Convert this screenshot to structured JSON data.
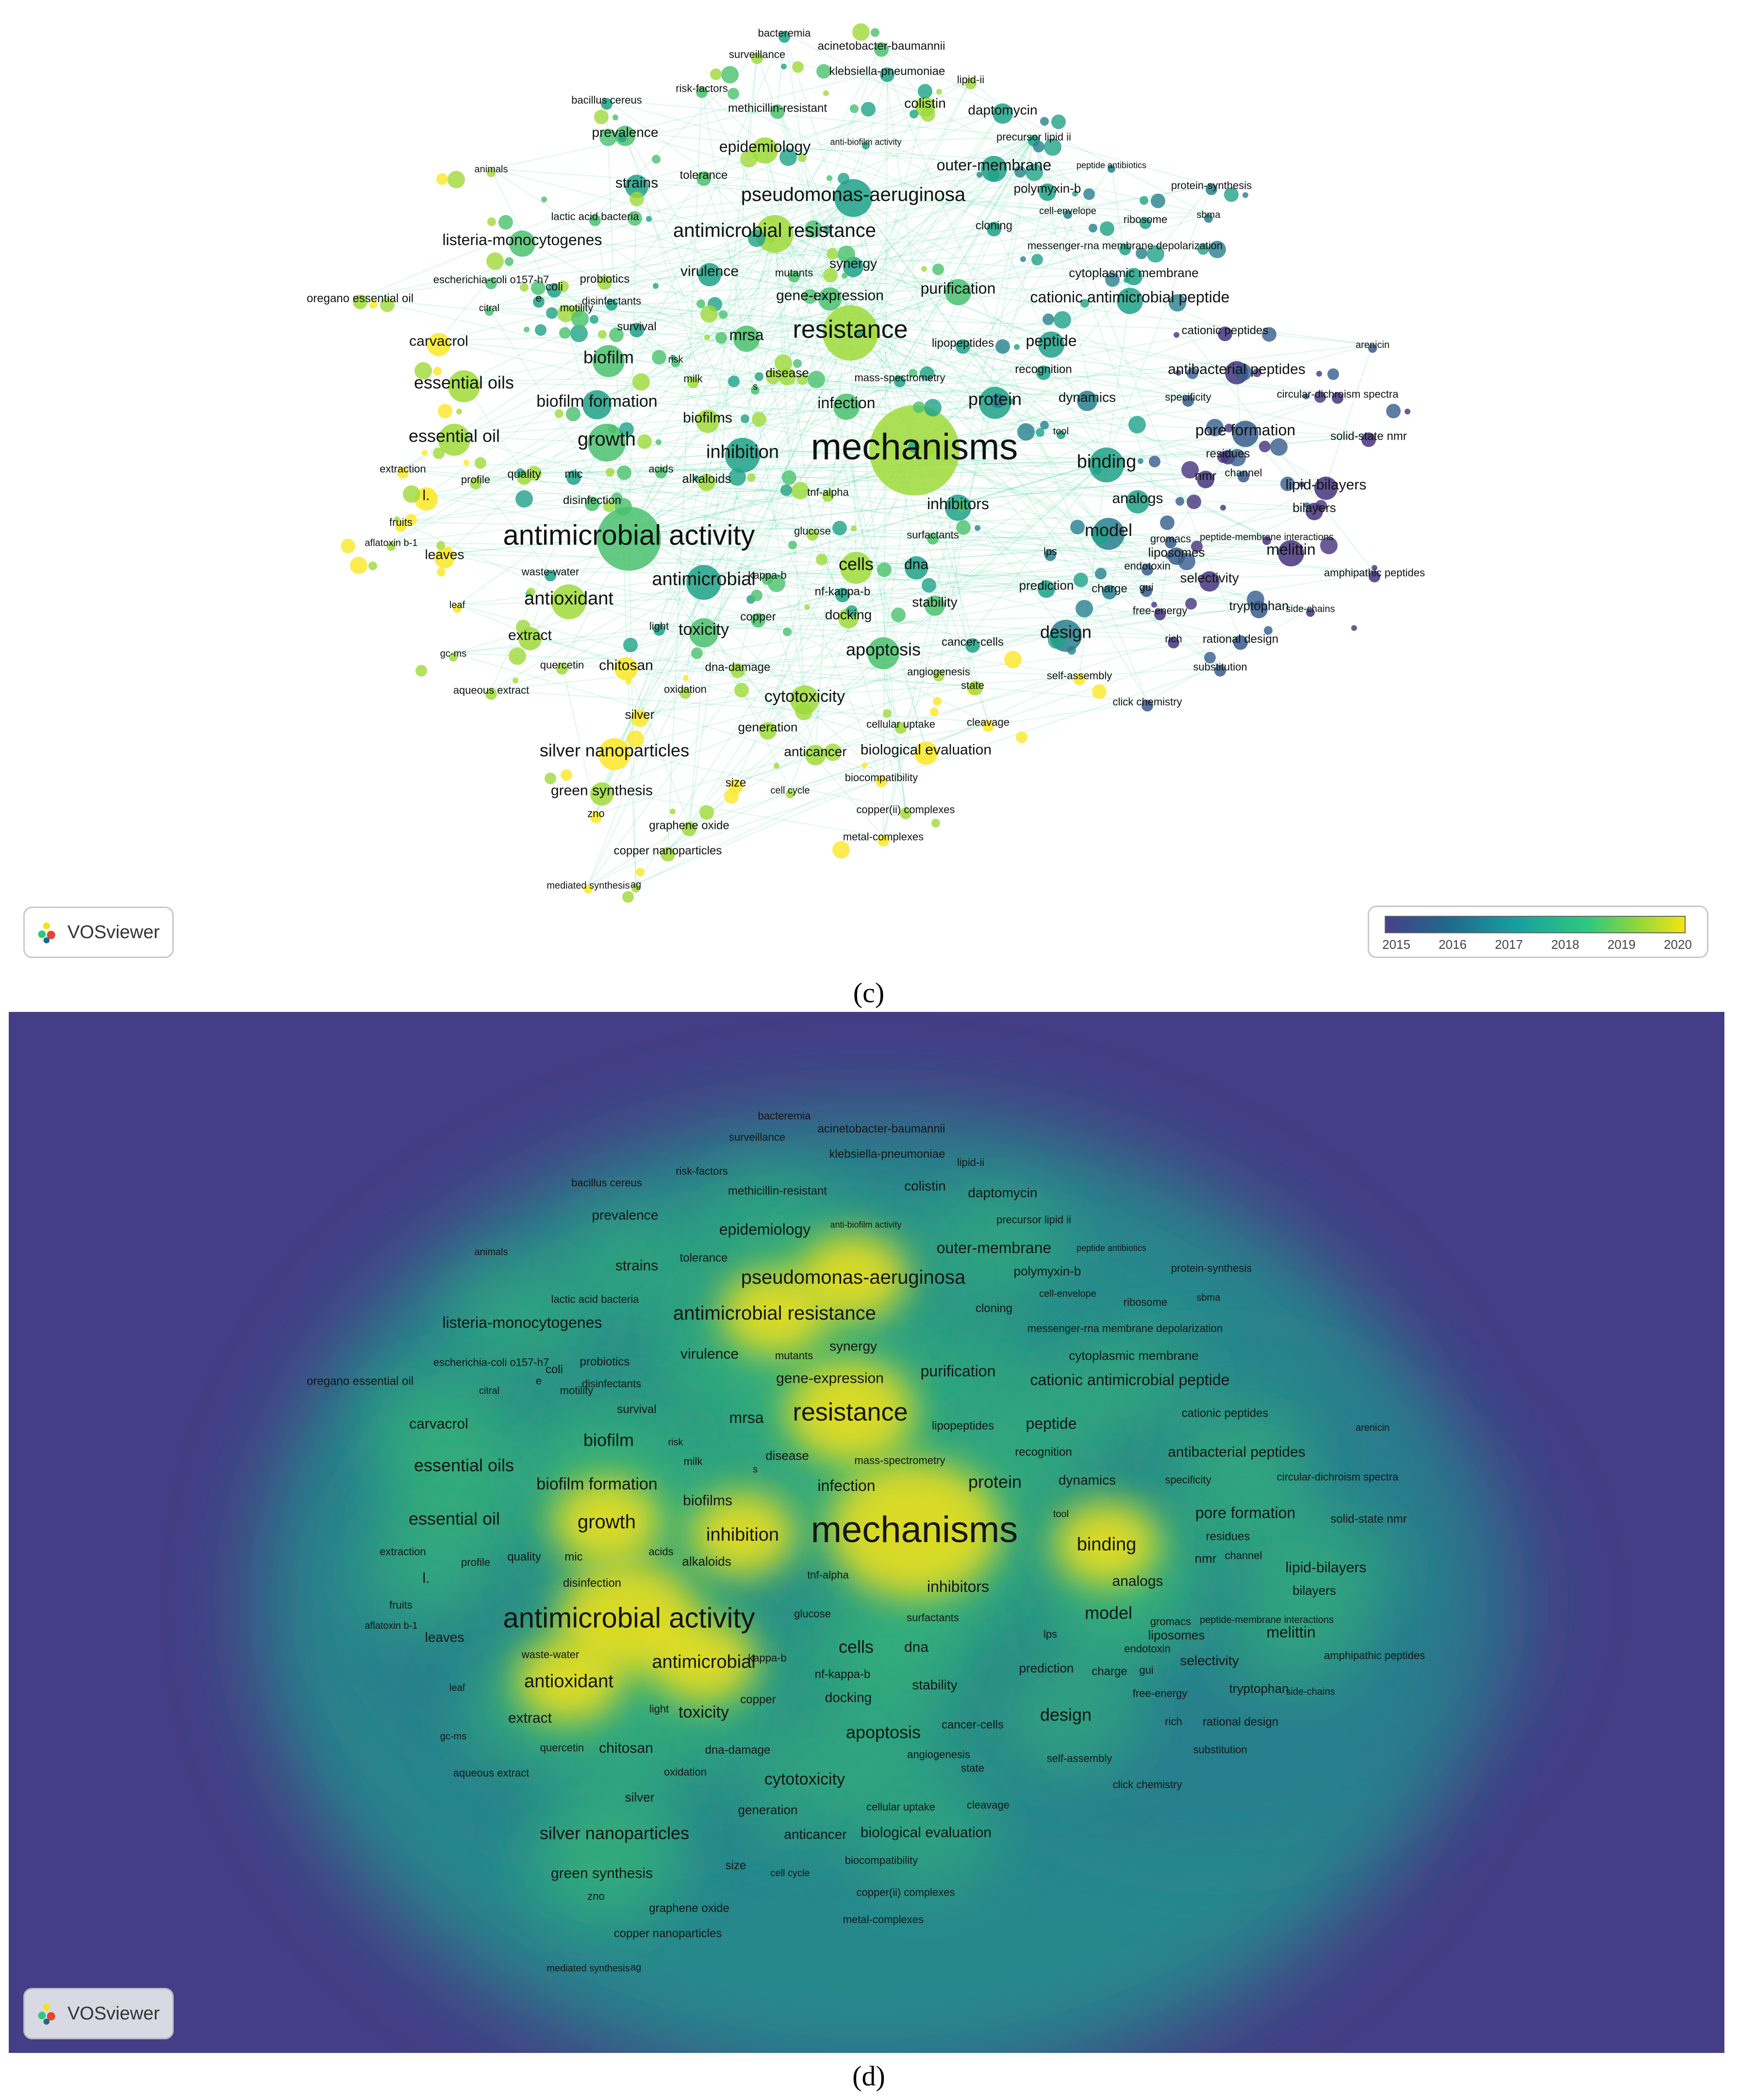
{
  "panels": {
    "c_label": "(c)",
    "d_label": "(d)"
  },
  "brand": "VOSviewer",
  "legend": {
    "ticks": [
      "2015",
      "2016",
      "2017",
      "2018",
      "2019",
      "2020"
    ],
    "gradient": [
      "#45418a",
      "#1e6b8d",
      "#17a0a0",
      "#2ec97e",
      "#8fd63c",
      "#f4e411"
    ]
  },
  "colors": {
    "density_background": "#433e85",
    "density_high": "#f6e31b",
    "edge": "#3bd494"
  },
  "terms": [
    {
      "t": "bacteremia",
      "s": 22
    },
    {
      "t": "acinetobacter-baumannii",
      "s": 24
    },
    {
      "t": "surveillance",
      "s": 22
    },
    {
      "t": "klebsiella-pneumoniae",
      "s": 24
    },
    {
      "t": "risk-factors",
      "s": 22
    },
    {
      "t": "lipid-ii",
      "s": 22
    },
    {
      "t": "bacillus cereus",
      "s": 22
    },
    {
      "t": "methicillin-resistant",
      "s": 24
    },
    {
      "t": "colistin",
      "s": 28
    },
    {
      "t": "daptomycin",
      "s": 28
    },
    {
      "t": "prevalence",
      "s": 28
    },
    {
      "t": "epidemiology",
      "s": 32
    },
    {
      "t": "anti-biofilm activity",
      "s": 18
    },
    {
      "t": "precursor lipid ii",
      "s": 22
    },
    {
      "t": "animals",
      "s": 20
    },
    {
      "t": "strains",
      "s": 30
    },
    {
      "t": "tolerance",
      "s": 24
    },
    {
      "t": "outer-membrane",
      "s": 32
    },
    {
      "t": "peptide antibiotics",
      "s": 18
    },
    {
      "t": "polymyxin-b",
      "s": 26
    },
    {
      "t": "protein-synthesis",
      "s": 22
    },
    {
      "t": "pseudomonas-aeruginosa",
      "s": 40
    },
    {
      "t": "cell-envelope",
      "s": 20
    },
    {
      "t": "ribosome",
      "s": 22
    },
    {
      "t": "sbma",
      "s": 20
    },
    {
      "t": "lactic acid bacteria",
      "s": 22
    },
    {
      "t": "antimicrobial resistance",
      "s": 40
    },
    {
      "t": "cloning",
      "s": 24
    },
    {
      "t": "listeria-monocytogenes",
      "s": 32
    },
    {
      "t": "messenger-rna membrane depolarization",
      "s": 22
    },
    {
      "t": "synergy",
      "s": 28
    },
    {
      "t": "escherichia-coli o157-h7",
      "s": 22
    },
    {
      "t": "probiotics",
      "s": 24
    },
    {
      "t": "virulence",
      "s": 30
    },
    {
      "t": "mutants",
      "s": 22
    },
    {
      "t": "cytoplasmic membrane",
      "s": 26
    },
    {
      "t": "coli",
      "s": 24
    },
    {
      "t": "purification",
      "s": 32
    },
    {
      "t": "oregano essential oil",
      "s": 24
    },
    {
      "t": "disinfectants",
      "s": 22
    },
    {
      "t": "gene-expression",
      "s": 30
    },
    {
      "t": "cationic antimicrobial peptide",
      "s": 32
    },
    {
      "t": "e",
      "s": 22
    },
    {
      "t": "citral",
      "s": 20
    },
    {
      "t": "motility",
      "s": 22
    },
    {
      "t": "survival",
      "s": 24
    },
    {
      "t": "mrsa",
      "s": 32
    },
    {
      "t": "resistance",
      "s": 52
    },
    {
      "t": "lipopeptides",
      "s": 24
    },
    {
      "t": "peptide",
      "s": 32
    },
    {
      "t": "cationic peptides",
      "s": 24
    },
    {
      "t": "carvacrol",
      "s": 30
    },
    {
      "t": "risk",
      "s": 20
    },
    {
      "t": "disease",
      "s": 26
    },
    {
      "t": "mass-spectrometry",
      "s": 22
    },
    {
      "t": "recognition",
      "s": 24
    },
    {
      "t": "antibacterial peptides",
      "s": 30
    },
    {
      "t": "arenicin",
      "s": 20
    },
    {
      "t": "biofilm",
      "s": 36
    },
    {
      "t": "milk",
      "s": 22
    },
    {
      "t": "essential oils",
      "s": 36
    },
    {
      "t": "s",
      "s": 20
    },
    {
      "t": "circular-dichroism spectra",
      "s": 22
    },
    {
      "t": "biofilm formation",
      "s": 34
    },
    {
      "t": "infection",
      "s": 32
    },
    {
      "t": "protein",
      "s": 36
    },
    {
      "t": "dynamics",
      "s": 28
    },
    {
      "t": "specificity",
      "s": 22
    },
    {
      "t": "biofilms",
      "s": 30
    },
    {
      "t": "pore formation",
      "s": 32
    },
    {
      "t": "solid-state nmr",
      "s": 24
    },
    {
      "t": "tool",
      "s": 20
    },
    {
      "t": "essential oil",
      "s": 36
    },
    {
      "t": "growth",
      "s": 40
    },
    {
      "t": "mechanisms",
      "s": 76
    },
    {
      "t": "inhibition",
      "s": 38
    },
    {
      "t": "residues",
      "s": 24
    },
    {
      "t": "binding",
      "s": 38
    },
    {
      "t": "nmr",
      "s": 26
    },
    {
      "t": "channel",
      "s": 22
    },
    {
      "t": "lipid-bilayers",
      "s": 30
    },
    {
      "t": "extraction",
      "s": 22
    },
    {
      "t": "profile",
      "s": 22
    },
    {
      "t": "quality",
      "s": 24
    },
    {
      "t": "mic",
      "s": 24
    },
    {
      "t": "acids",
      "s": 22
    },
    {
      "t": "alkaloids",
      "s": 26
    },
    {
      "t": "l.",
      "s": 30
    },
    {
      "t": "disinfection",
      "s": 24
    },
    {
      "t": "tnf-alpha",
      "s": 22
    },
    {
      "t": "inhibitors",
      "s": 32
    },
    {
      "t": "analogs",
      "s": 30
    },
    {
      "t": "bilayers",
      "s": 26
    },
    {
      "t": "fruits",
      "s": 22
    },
    {
      "t": "antimicrobial activity",
      "s": 58
    },
    {
      "t": "glucose",
      "s": 22
    },
    {
      "t": "aflatoxin b-1",
      "s": 20
    },
    {
      "t": "surfactants",
      "s": 22
    },
    {
      "t": "model",
      "s": 36
    },
    {
      "t": "gromacs",
      "s": 22
    },
    {
      "t": "peptide-membrane interactions",
      "s": 20
    },
    {
      "t": "leaves",
      "s": 28
    },
    {
      "t": "lps",
      "s": 22
    },
    {
      "t": "liposomes",
      "s": 26
    },
    {
      "t": "melittin",
      "s": 32
    },
    {
      "t": "waste-water",
      "s": 22
    },
    {
      "t": "kappa-b",
      "s": 22
    },
    {
      "t": "cells",
      "s": 36
    },
    {
      "t": "dna",
      "s": 30
    },
    {
      "t": "endotoxin",
      "s": 22
    },
    {
      "t": "amphipathic peptides",
      "s": 22
    },
    {
      "t": "antimicrobial",
      "s": 38
    },
    {
      "t": "selectivity",
      "s": 28
    },
    {
      "t": "prediction",
      "s": 26
    },
    {
      "t": "charge",
      "s": 24
    },
    {
      "t": "gui",
      "s": 22
    },
    {
      "t": "antioxidant",
      "s": 38
    },
    {
      "t": "nf-kappa-b",
      "s": 24
    },
    {
      "t": "stability",
      "s": 28
    },
    {
      "t": "tryptophan",
      "s": 26
    },
    {
      "t": "side-chains",
      "s": 20
    },
    {
      "t": "leaf",
      "s": 20
    },
    {
      "t": "free-energy",
      "s": 22
    },
    {
      "t": "light",
      "s": 22
    },
    {
      "t": "copper",
      "s": 24
    },
    {
      "t": "docking",
      "s": 28
    },
    {
      "t": "design",
      "s": 36
    },
    {
      "t": "toxicity",
      "s": 34
    },
    {
      "t": "extract",
      "s": 30
    },
    {
      "t": "cancer-cells",
      "s": 24
    },
    {
      "t": "rich",
      "s": 22
    },
    {
      "t": "rational design",
      "s": 24
    },
    {
      "t": "gc-ms",
      "s": 20
    },
    {
      "t": "apoptosis",
      "s": 36
    },
    {
      "t": "quercetin",
      "s": 22
    },
    {
      "t": "chitosan",
      "s": 30
    },
    {
      "t": "dna-damage",
      "s": 24
    },
    {
      "t": "substitution",
      "s": 22
    },
    {
      "t": "angiogenesis",
      "s": 22
    },
    {
      "t": "self-assembly",
      "s": 22
    },
    {
      "t": "aqueous extract",
      "s": 22
    },
    {
      "t": "state",
      "s": 22
    },
    {
      "t": "oxidation",
      "s": 22
    },
    {
      "t": "click chemistry",
      "s": 22
    },
    {
      "t": "cytotoxicity",
      "s": 34
    },
    {
      "t": "silver",
      "s": 26
    },
    {
      "t": "cellular uptake",
      "s": 22
    },
    {
      "t": "cleavage",
      "s": 22
    },
    {
      "t": "generation",
      "s": 26
    },
    {
      "t": "silver nanoparticles",
      "s": 36
    },
    {
      "t": "anticancer",
      "s": 28
    },
    {
      "t": "biological evaluation",
      "s": 30
    },
    {
      "t": "green synthesis",
      "s": 30
    },
    {
      "t": "size",
      "s": 24
    },
    {
      "t": "cell cycle",
      "s": 20
    },
    {
      "t": "biocompatibility",
      "s": 22
    },
    {
      "t": "copper(ii) complexes",
      "s": 22
    },
    {
      "t": "zno",
      "s": 22
    },
    {
      "t": "graphene oxide",
      "s": 24
    },
    {
      "t": "metal-complexes",
      "s": 22
    },
    {
      "t": "copper nanoparticles",
      "s": 24
    },
    {
      "t": "mediated synthesis",
      "s": 20
    },
    {
      "t": "ag",
      "s": 20
    }
  ]
}
